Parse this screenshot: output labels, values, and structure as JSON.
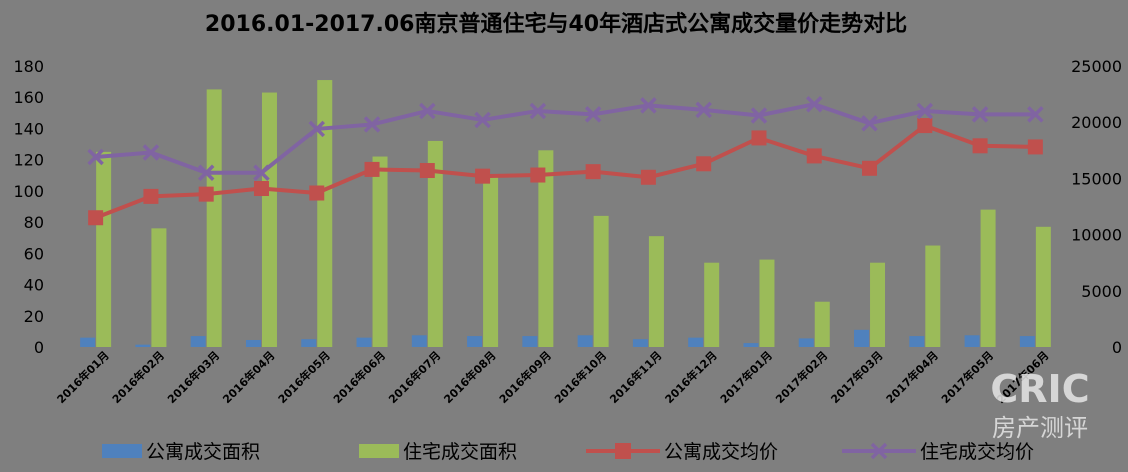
{
  "chart_data": {
    "type": "bar+line",
    "title": "2016.01-2017.06南京普通住宅与40年酒店式公寓成交量价走势对比",
    "categories": [
      "2016年01月",
      "2016年02月",
      "2016年03月",
      "2016年04月",
      "2016年05月",
      "2016年06月",
      "2016年07月",
      "2016年08月",
      "2016年09月",
      "2016年10月",
      "2016年11月",
      "2016年12月",
      "2017年01月",
      "2017年02月",
      "2017年03月",
      "2017年04月",
      "2017年05月",
      "2017年06月"
    ],
    "category_labels": [
      "2016年01月",
      "2016年02月",
      "2016年03月",
      "2016年04月",
      "2016年05月",
      "2016年06月",
      "2016年07月",
      "2016年08月",
      "2016年09月",
      "2016年10月",
      "2016年11月",
      "2016年12月",
      "2017年01月",
      "2017年02月",
      "2017年03月",
      "2017年04月",
      "2017年05月",
      "2017年06月"
    ],
    "y_left": {
      "min": 0,
      "max": 180,
      "step": 20,
      "ticks": [
        "0",
        "20",
        "40",
        "60",
        "80",
        "100",
        "120",
        "140",
        "160",
        "180"
      ]
    },
    "y_right": {
      "min": 0,
      "max": 25000,
      "step": 5000,
      "ticks": [
        "0",
        "5000",
        "10000",
        "15000",
        "20000",
        "25000"
      ]
    },
    "series": [
      {
        "name": "公寓成交面积",
        "type": "bar",
        "axis": "left",
        "color": "#4f81bd",
        "values": [
          6,
          1.5,
          7,
          4.5,
          5,
          6,
          7.5,
          7,
          7,
          7.5,
          5,
          6,
          2.5,
          5.5,
          11,
          7,
          7.5,
          7
        ]
      },
      {
        "name": "住宅成交面积",
        "type": "bar",
        "axis": "left",
        "color": "#9bbb59",
        "values": [
          125,
          76,
          165,
          163,
          171,
          122,
          132,
          110,
          126,
          84,
          71,
          54,
          56,
          29,
          54,
          65,
          88,
          77
        ]
      },
      {
        "name": "公寓成交均价",
        "type": "line",
        "axis": "right",
        "color": "#c0504d",
        "marker": "square",
        "values": [
          11500,
          13400,
          13600,
          14100,
          13700,
          15800,
          15700,
          15200,
          15300,
          15600,
          15100,
          16300,
          18600,
          17000,
          15900,
          19700,
          17900,
          17800
        ]
      },
      {
        "name": "住宅成交均价",
        "type": "line",
        "axis": "right",
        "color": "#8064a2",
        "marker": "x",
        "values": [
          16900,
          17300,
          15500,
          15500,
          19400,
          19800,
          21000,
          20200,
          21000,
          20700,
          21500,
          21100,
          20600,
          21600,
          19900,
          21000,
          20700,
          20700
        ]
      }
    ],
    "legend_position": "bottom",
    "grid": false
  },
  "watermark": {
    "brand": "CRIC",
    "subtitle": "房产测评"
  }
}
